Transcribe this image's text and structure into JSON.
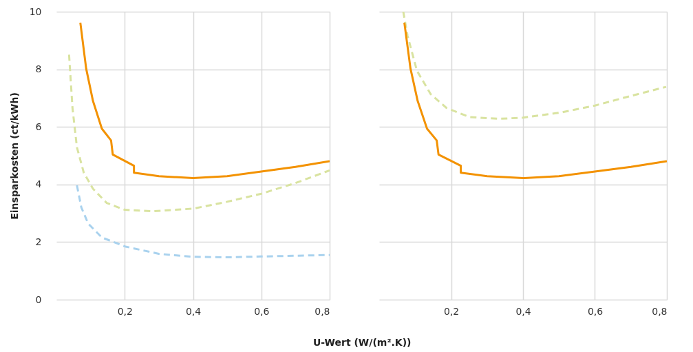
{
  "chart_data": [
    {
      "type": "line",
      "ylabel": "Einsparkosten (ct/kWh)",
      "xlabel": "U-Wert (W/(m².K))",
      "xlim": [
        0,
        0.8
      ],
      "ylim": [
        0,
        10
      ],
      "xticks": [
        {
          "value": 0.2,
          "label": "0,2"
        },
        {
          "value": 0.4,
          "label": "0,4"
        },
        {
          "value": 0.6,
          "label": "0,6"
        },
        {
          "value": 0.8,
          "label": "0,8"
        }
      ],
      "yticks": [
        0,
        2,
        4,
        6,
        8,
        10
      ],
      "grid": true,
      "series": [
        {
          "color": "#a9d2ee",
          "line_style": "dashed",
          "x": [
            0.06,
            0.073,
            0.093,
            0.133,
            0.2,
            0.3,
            0.4,
            0.5,
            0.6,
            0.8
          ],
          "values": [
            3.97,
            3.2,
            2.64,
            2.16,
            1.85,
            1.59,
            1.49,
            1.47,
            1.5,
            1.55
          ]
        },
        {
          "color": "#d9e3a0",
          "line_style": "dashed",
          "x": [
            0.037,
            0.047,
            0.06,
            0.08,
            0.107,
            0.147,
            0.2,
            0.28,
            0.4,
            0.5,
            0.6,
            0.7,
            0.8
          ],
          "values": [
            8.51,
            6.66,
            5.29,
            4.41,
            3.85,
            3.36,
            3.12,
            3.07,
            3.16,
            3.4,
            3.68,
            4.05,
            4.49
          ]
        },
        {
          "color": "#f39200",
          "line_style": "solid",
          "x": [
            0.07,
            0.087,
            0.107,
            0.133,
            0.16,
            0.165,
            0.227,
            0.227,
            0.3,
            0.4,
            0.5,
            0.6,
            0.7,
            0.8
          ],
          "values": [
            9.62,
            8.03,
            6.9,
            5.94,
            5.53,
            5.04,
            4.65,
            4.41,
            4.29,
            4.22,
            4.29,
            4.45,
            4.61,
            4.81
          ]
        }
      ]
    },
    {
      "type": "line",
      "xlim": [
        0,
        0.8
      ],
      "ylim": [
        0,
        10
      ],
      "xticks": [
        {
          "value": 0.2,
          "label": "0,2"
        },
        {
          "value": 0.4,
          "label": "0,4"
        },
        {
          "value": 0.6,
          "label": "0,6"
        },
        {
          "value": 0.8,
          "label": "0,8"
        }
      ],
      "yticks": [
        0,
        2,
        4,
        6,
        8,
        10
      ],
      "grid": true,
      "tick_labels": "x",
      "series": [
        {
          "color": "#d9e3a0",
          "line_style": "dashed",
          "x": [
            0.067,
            0.079,
            0.105,
            0.143,
            0.187,
            0.251,
            0.333,
            0.4,
            0.505,
            0.6,
            0.695,
            0.798
          ],
          "values": [
            10,
            9.16,
            7.95,
            7.14,
            6.66,
            6.34,
            6.28,
            6.32,
            6.5,
            6.74,
            7.06,
            7.39
          ]
        },
        {
          "color": "#f39200",
          "line_style": "solid",
          "x": [
            0.07,
            0.087,
            0.107,
            0.133,
            0.16,
            0.165,
            0.227,
            0.227,
            0.3,
            0.4,
            0.5,
            0.6,
            0.7,
            0.8
          ],
          "values": [
            9.62,
            8.03,
            6.9,
            5.94,
            5.53,
            5.04,
            4.65,
            4.41,
            4.29,
            4.22,
            4.29,
            4.45,
            4.61,
            4.81
          ]
        }
      ]
    }
  ]
}
